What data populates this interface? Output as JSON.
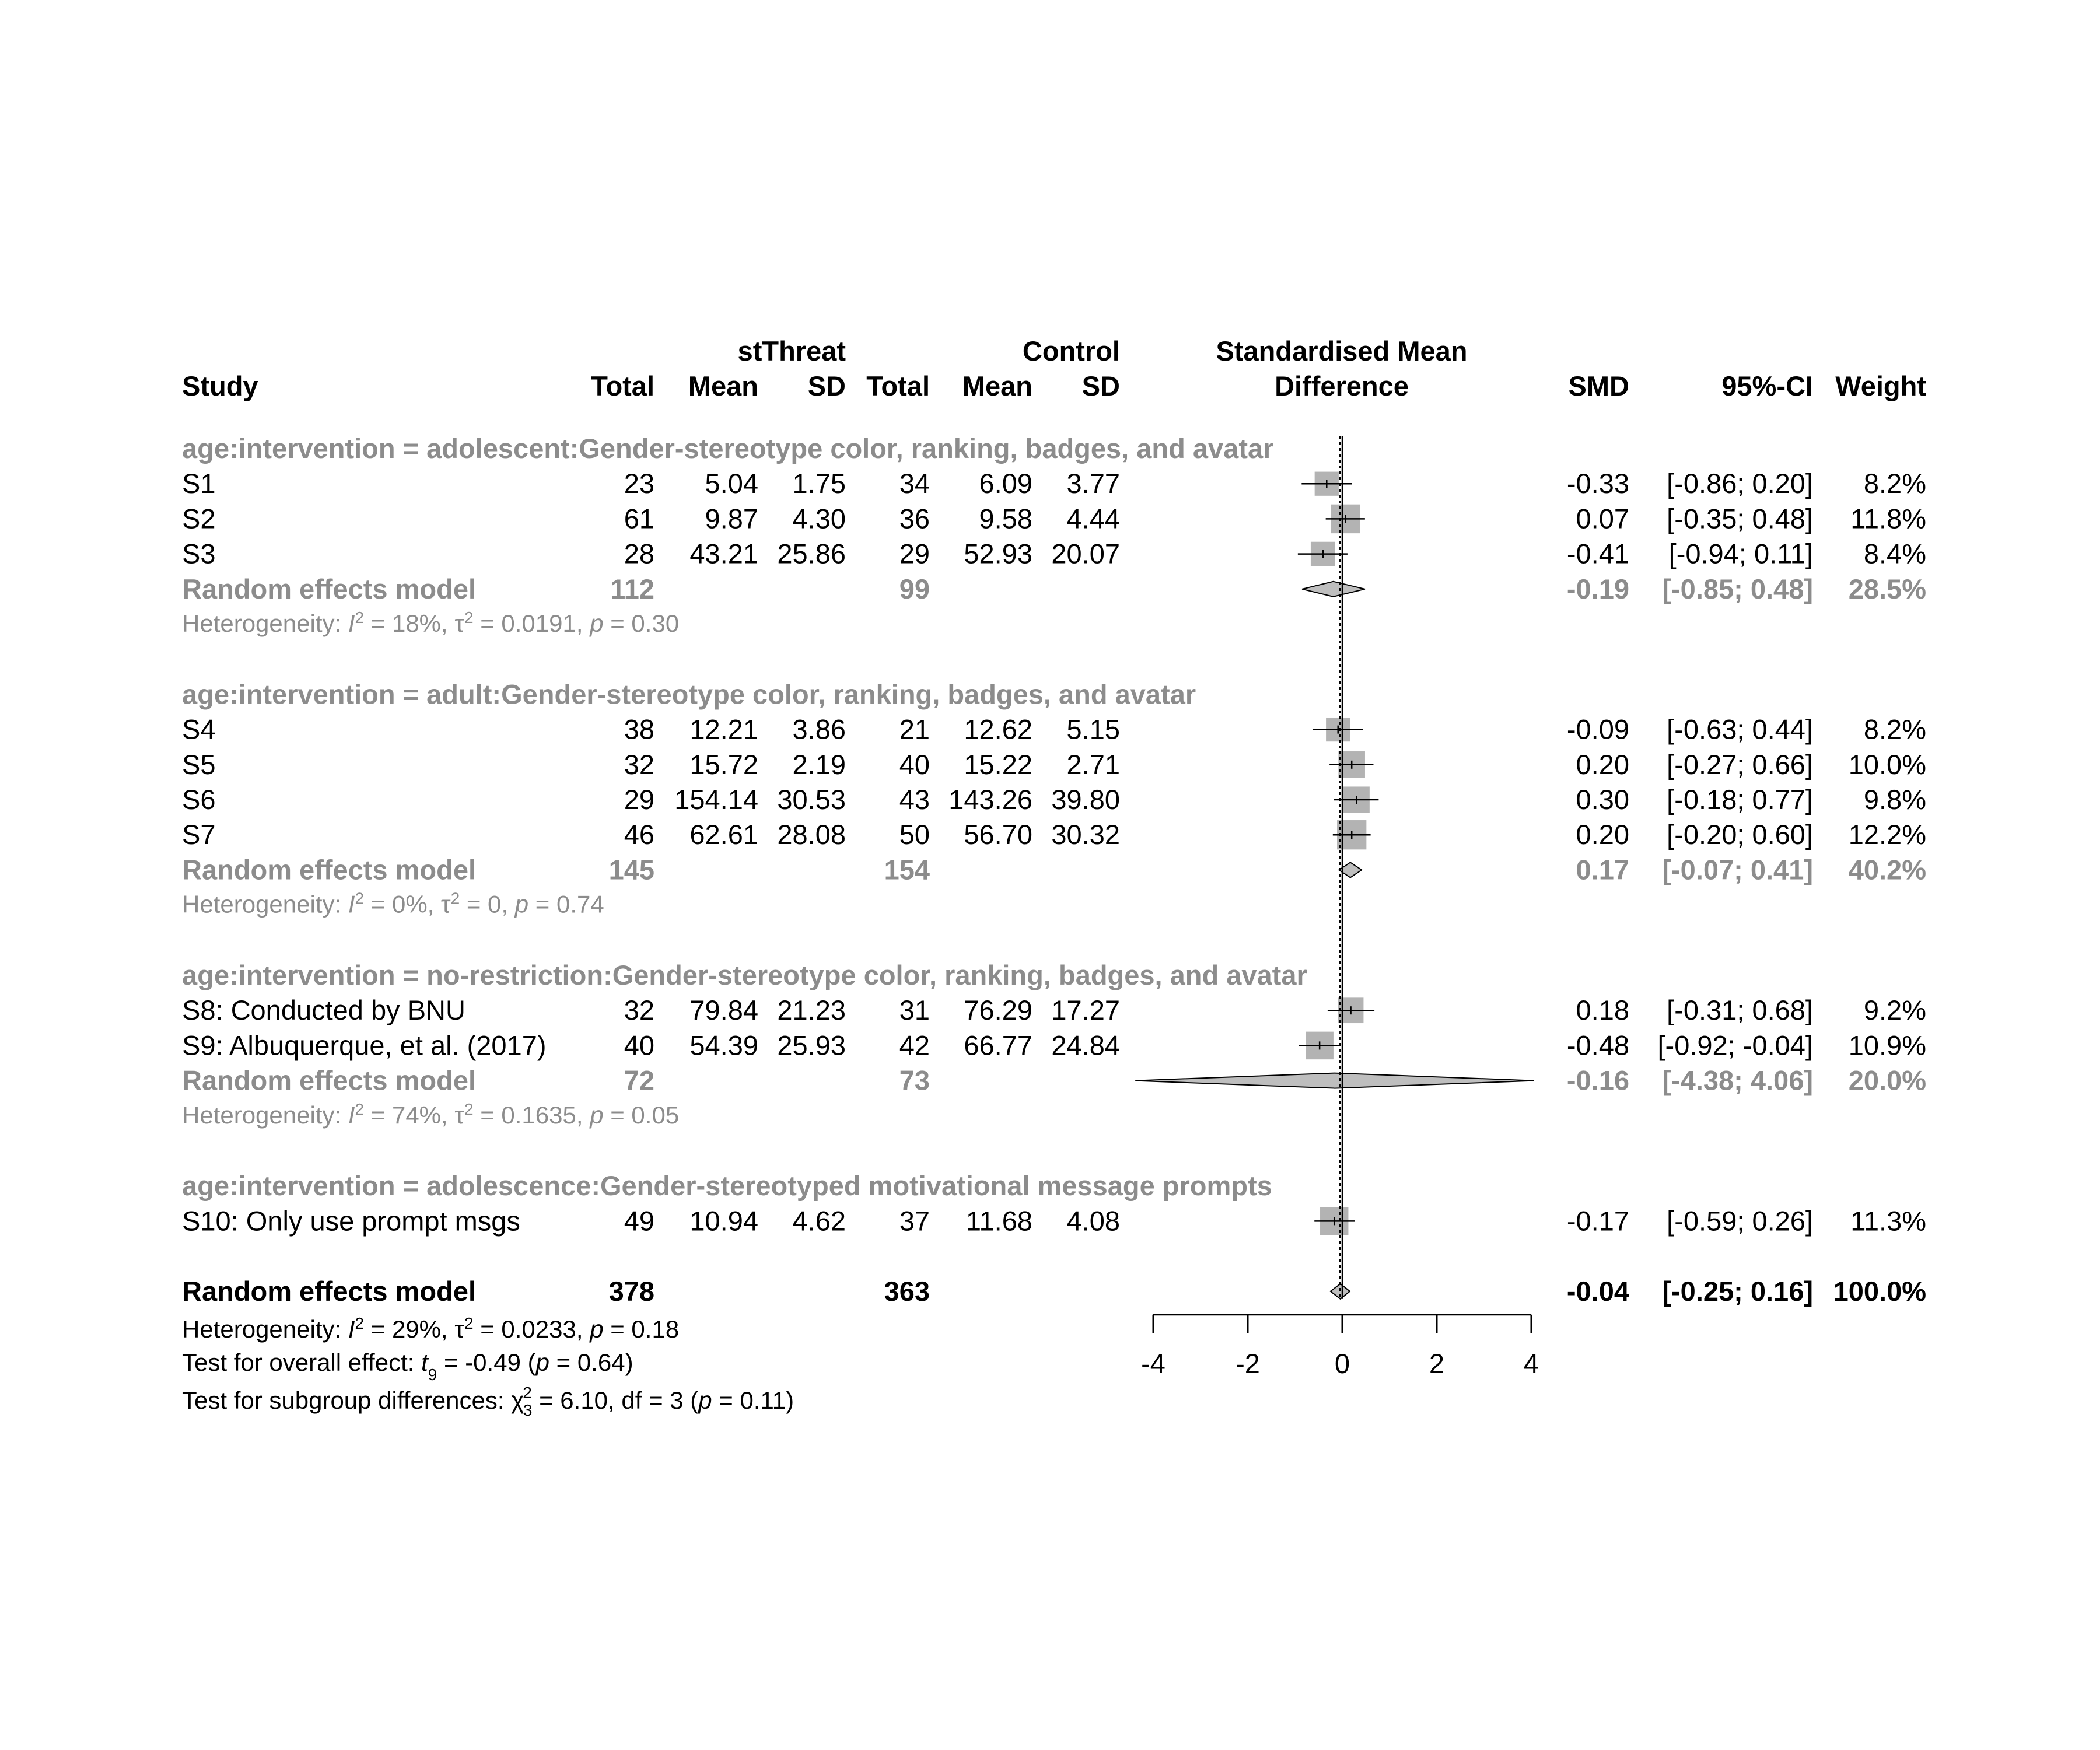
{
  "header": {
    "group_left": "stThreat",
    "group_right": "Control",
    "plot_title_line1": "Standardised Mean",
    "plot_title_line2": "Difference",
    "study": "Study",
    "total": "Total",
    "mean": "Mean",
    "sd": "SD",
    "smd": "SMD",
    "ci": "95%-CI",
    "weight": "Weight"
  },
  "colors": {
    "text": "#000000",
    "subgroup_text": "#8c8c8c",
    "square": "#b3b3b3",
    "diamond_fill": "#bebebe"
  },
  "chart_data": {
    "type": "forest",
    "xlim": [
      -4,
      4
    ],
    "x_ticks": [
      "-4",
      "-2",
      "0",
      "2",
      "4"
    ],
    "reference_line": 0,
    "subgroups": [
      {
        "label": "age:intervention = adolescent:Gender-stereotype color, ranking, badges, and avatar",
        "studies": [
          {
            "name": "S1",
            "n_e": "23",
            "mean_e": "5.04",
            "sd_e": "1.75",
            "n_c": "34",
            "mean_c": "6.09",
            "sd_c": "3.77",
            "smd": -0.33,
            "lower": -0.86,
            "upper": 0.2,
            "smd_text": "-0.33",
            "ci_text": "[-0.86;  0.20]",
            "weight": 8.2,
            "weight_text": "8.2%"
          },
          {
            "name": "S2",
            "n_e": "61",
            "mean_e": "9.87",
            "sd_e": "4.30",
            "n_c": "36",
            "mean_c": "9.58",
            "sd_c": "4.44",
            "smd": 0.07,
            "lower": -0.35,
            "upper": 0.48,
            "smd_text": "0.07",
            "ci_text": "[-0.35;  0.48]",
            "weight": 11.8,
            "weight_text": "11.8%"
          },
          {
            "name": "S3",
            "n_e": "28",
            "mean_e": "43.21",
            "sd_e": "25.86",
            "n_c": "29",
            "mean_c": "52.93",
            "sd_c": "20.07",
            "smd": -0.41,
            "lower": -0.94,
            "upper": 0.11,
            "smd_text": "-0.41",
            "ci_text": "[-0.94;  0.11]",
            "weight": 8.4,
            "weight_text": "8.4%"
          }
        ],
        "pooled": {
          "label": "Random effects model",
          "n_e": "112",
          "n_c": "99",
          "smd": -0.19,
          "lower": -0.85,
          "upper": 0.48,
          "smd_text": "-0.19",
          "ci_text": "[-0.85;  0.48]",
          "weight_text": "28.5%"
        },
        "heterogeneity": {
          "prefix": "Heterogeneity: ",
          "i2": "= 18%, ",
          "tau2": "= 0.0191, ",
          "p": "= 0.30"
        }
      },
      {
        "label": "age:intervention = adult:Gender-stereotype color, ranking, badges, and avatar",
        "studies": [
          {
            "name": "S4",
            "n_e": "38",
            "mean_e": "12.21",
            "sd_e": "3.86",
            "n_c": "21",
            "mean_c": "12.62",
            "sd_c": "5.15",
            "smd": -0.09,
            "lower": -0.63,
            "upper": 0.44,
            "smd_text": "-0.09",
            "ci_text": "[-0.63;  0.44]",
            "weight": 8.2,
            "weight_text": "8.2%"
          },
          {
            "name": "S5",
            "n_e": "32",
            "mean_e": "15.72",
            "sd_e": "2.19",
            "n_c": "40",
            "mean_c": "15.22",
            "sd_c": "2.71",
            "smd": 0.2,
            "lower": -0.27,
            "upper": 0.66,
            "smd_text": "0.20",
            "ci_text": "[-0.27;  0.66]",
            "weight": 10.0,
            "weight_text": "10.0%"
          },
          {
            "name": "S6",
            "n_e": "29",
            "mean_e": "154.14",
            "sd_e": "30.53",
            "n_c": "43",
            "mean_c": "143.26",
            "sd_c": "39.80",
            "smd": 0.3,
            "lower": -0.18,
            "upper": 0.77,
            "smd_text": "0.30",
            "ci_text": "[-0.18;  0.77]",
            "weight": 9.8,
            "weight_text": "9.8%"
          },
          {
            "name": "S7",
            "n_e": "46",
            "mean_e": "62.61",
            "sd_e": "28.08",
            "n_c": "50",
            "mean_c": "56.70",
            "sd_c": "30.32",
            "smd": 0.2,
            "lower": -0.2,
            "upper": 0.6,
            "smd_text": "0.20",
            "ci_text": "[-0.20;  0.60]",
            "weight": 12.2,
            "weight_text": "12.2%"
          }
        ],
        "pooled": {
          "label": "Random effects model",
          "n_e": "145",
          "n_c": "154",
          "smd": 0.17,
          "lower": -0.07,
          "upper": 0.41,
          "smd_text": "0.17",
          "ci_text": "[-0.07;  0.41]",
          "weight_text": "40.2%"
        },
        "heterogeneity": {
          "prefix": "Heterogeneity: ",
          "i2": "= 0%, ",
          "tau2": "= 0, ",
          "p": "= 0.74"
        }
      },
      {
        "label": "age:intervention = no-restriction:Gender-stereotype color, ranking, badges, and avatar",
        "studies": [
          {
            "name": "S8: Conducted by BNU",
            "n_e": "32",
            "mean_e": "79.84",
            "sd_e": "21.23",
            "n_c": "31",
            "mean_c": "76.29",
            "sd_c": "17.27",
            "smd": 0.18,
            "lower": -0.31,
            "upper": 0.68,
            "smd_text": "0.18",
            "ci_text": "[-0.31;  0.68]",
            "weight": 9.2,
            "weight_text": "9.2%"
          },
          {
            "name": "S9: Albuquerque, et al. (2017)",
            "n_e": "40",
            "mean_e": "54.39",
            "sd_e": "25.93",
            "n_c": "42",
            "mean_c": "66.77",
            "sd_c": "24.84",
            "smd": -0.48,
            "lower": -0.92,
            "upper": -0.04,
            "smd_text": "-0.48",
            "ci_text": "[-0.92; -0.04]",
            "weight": 10.9,
            "weight_text": "10.9%"
          }
        ],
        "pooled": {
          "label": "Random effects model",
          "n_e": "72",
          "n_c": "73",
          "smd": -0.16,
          "lower": -4.38,
          "upper": 4.06,
          "smd_text": "-0.16",
          "ci_text": "[-4.38;  4.06]",
          "weight_text": "20.0%"
        },
        "heterogeneity": {
          "prefix": "Heterogeneity: ",
          "i2": "= 74%, ",
          "tau2": "= 0.1635, ",
          "p": "= 0.05"
        }
      },
      {
        "label": "age:intervention = adolescence:Gender-stereotyped motivational message prompts",
        "studies": [
          {
            "name": "S10: Only use prompt msgs",
            "n_e": "49",
            "mean_e": "10.94",
            "sd_e": "4.62",
            "n_c": "37",
            "mean_c": "11.68",
            "sd_c": "4.08",
            "smd": -0.17,
            "lower": -0.59,
            "upper": 0.26,
            "smd_text": "-0.17",
            "ci_text": "[-0.59;  0.26]",
            "weight": 11.3,
            "weight_text": "11.3%"
          }
        ],
        "pooled": null,
        "heterogeneity": null
      }
    ],
    "overall": {
      "label": "Random effects model",
      "n_e": "378",
      "n_c": "363",
      "smd": -0.04,
      "lower": -0.25,
      "upper": 0.16,
      "smd_text": "-0.04",
      "ci_text": "[-0.25;  0.16]",
      "weight_text": "100.0%",
      "heterogeneity": {
        "prefix": "Heterogeneity: ",
        "i2": "= 29%, ",
        "tau2": "= 0.0233, ",
        "p": "= 0.18"
      },
      "overall_effect": {
        "prefix": "Test for overall effect: ",
        "t_sub": "9",
        "t_val": " = -0.49 (",
        "p": " = 0.64)"
      },
      "subgroup_test": {
        "prefix": "Test for subgroup differences: ",
        "chi_sub": "3",
        "chi_val": " = 6.10, df = 3 (",
        "p": " = 0.11)"
      }
    }
  }
}
